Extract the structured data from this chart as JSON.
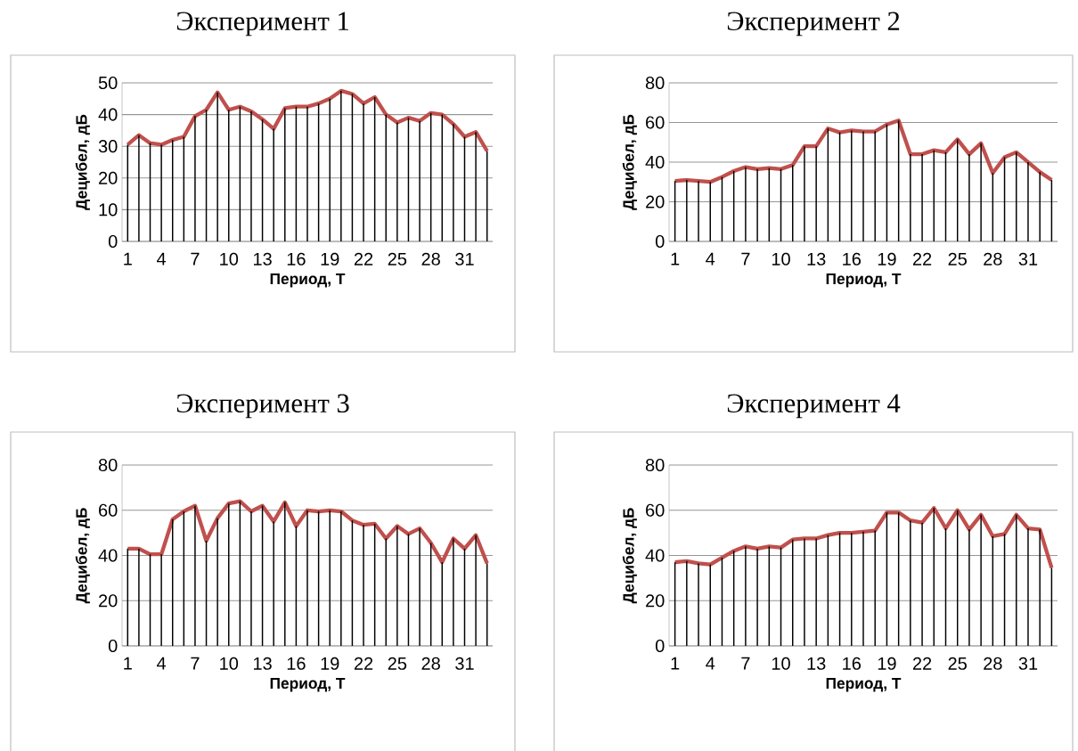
{
  "chart_data": [
    {
      "type": "line",
      "title": "Эксперимент 1",
      "xlabel": "Период, Т",
      "ylabel": "Децибел, дБ",
      "grid": "y",
      "ylim": [
        0,
        50
      ],
      "yticks": [
        0,
        10,
        20,
        30,
        40,
        50
      ],
      "categories": [
        "1",
        null,
        null,
        "4",
        null,
        null,
        "7",
        null,
        null,
        "10",
        null,
        null,
        "13",
        null,
        null,
        "16",
        null,
        null,
        "19",
        null,
        null,
        "22",
        null,
        null,
        "25",
        null,
        null,
        "28",
        null,
        null,
        "31",
        null,
        null
      ],
      "series": [
        {
          "type": "bar",
          "color": "#000000",
          "values": [
            30.5,
            33.5,
            31,
            30.5,
            32,
            33,
            39.5,
            41.5,
            47,
            41.5,
            42.5,
            41,
            38.5,
            35.5,
            42,
            42.5,
            42.5,
            43.5,
            45,
            47.5,
            46.5,
            43.5,
            45.5,
            40,
            37.5,
            39,
            38,
            40.5,
            40,
            37,
            33,
            34.5,
            28.5
          ]
        },
        {
          "color": "#c0504d",
          "values": [
            30.5,
            33.5,
            31,
            30.5,
            32,
            33,
            39.5,
            41.5,
            47,
            41.5,
            42.5,
            41,
            38.5,
            35.5,
            42,
            42.5,
            42.5,
            43.5,
            45,
            47.5,
            46.5,
            43.5,
            45.5,
            40,
            37.5,
            39,
            38,
            40.5,
            40,
            37,
            33,
            34.5,
            28.5
          ]
        }
      ]
    },
    {
      "type": "line",
      "title": "Эксперимент 2",
      "xlabel": "Период, Т",
      "ylabel": "Децибел, дБ",
      "grid": "y",
      "ylim": [
        0,
        80
      ],
      "yticks": [
        0,
        20,
        40,
        60,
        80
      ],
      "categories": [
        "1",
        null,
        null,
        "4",
        null,
        null,
        "7",
        null,
        null,
        "10",
        null,
        null,
        "13",
        null,
        null,
        "16",
        null,
        null,
        "19",
        null,
        null,
        "22",
        null,
        null,
        "25",
        null,
        null,
        "28",
        null,
        null,
        "31",
        null,
        null
      ],
      "series": [
        {
          "type": "bar",
          "color": "#000000",
          "values": [
            30.5,
            31,
            30.5,
            30,
            32.5,
            35.5,
            37.5,
            36.5,
            37,
            36.5,
            38.5,
            48,
            48,
            57,
            55,
            56,
            55.5,
            55.5,
            59,
            61,
            44,
            44,
            46,
            45,
            51.5,
            44,
            49.5,
            34.5,
            42.5,
            45,
            40,
            35,
            31
          ]
        },
        {
          "color": "#c0504d",
          "values": [
            30.5,
            31,
            30.5,
            30,
            32.5,
            35.5,
            37.5,
            36.5,
            37,
            36.5,
            38.5,
            48,
            48,
            57,
            55,
            56,
            55.5,
            55.5,
            59,
            61,
            44,
            44,
            46,
            45,
            51.5,
            44,
            49.5,
            34.5,
            42.5,
            45,
            40,
            35,
            31
          ]
        }
      ]
    },
    {
      "type": "line",
      "title": "Эксперимент 3",
      "xlabel": "Период, Т",
      "ylabel": "Децибел, дБ",
      "grid": "y",
      "ylim": [
        0,
        80
      ],
      "yticks": [
        0,
        20,
        40,
        60,
        80
      ],
      "categories": [
        "1",
        null,
        null,
        "4",
        null,
        null,
        "7",
        null,
        null,
        "10",
        null,
        null,
        "13",
        null,
        null,
        "16",
        null,
        null,
        "19",
        null,
        null,
        "22",
        null,
        null,
        "25",
        null,
        null,
        "28",
        null,
        null,
        "31",
        null,
        null
      ],
      "series": [
        {
          "type": "bar",
          "color": "#000000",
          "values": [
            43,
            43,
            40.5,
            40.5,
            56,
            59.5,
            62,
            46.5,
            56.5,
            63,
            64,
            59.5,
            62,
            55,
            63.5,
            53,
            60,
            59.5,
            60,
            59.5,
            55.5,
            53.5,
            54,
            47.5,
            53,
            49.5,
            52,
            45.5,
            37,
            47.5,
            43,
            49,
            36.5
          ]
        },
        {
          "color": "#c0504d",
          "values": [
            43,
            43,
            40.5,
            40.5,
            56,
            59.5,
            62,
            46.5,
            56.5,
            63,
            64,
            59.5,
            62,
            55,
            63.5,
            53,
            60,
            59.5,
            60,
            59.5,
            55.5,
            53.5,
            54,
            47.5,
            53,
            49.5,
            52,
            45.5,
            37,
            47.5,
            43,
            49,
            36.5
          ]
        }
      ]
    },
    {
      "type": "line",
      "title": "Эксперимент 4",
      "xlabel": "Период, Т",
      "ylabel": "Децибел, дБ",
      "grid": "y",
      "ylim": [
        0,
        80
      ],
      "yticks": [
        0,
        20,
        40,
        60,
        80
      ],
      "categories": [
        "1",
        null,
        null,
        "4",
        null,
        null,
        "7",
        null,
        null,
        "10",
        null,
        null,
        "13",
        null,
        null,
        "16",
        null,
        null,
        "19",
        null,
        null,
        "22",
        null,
        null,
        "25",
        null,
        null,
        "28",
        null,
        null,
        "31",
        null,
        null
      ],
      "series": [
        {
          "type": "bar",
          "color": "#000000",
          "values": [
            37,
            37.5,
            36.5,
            36,
            39,
            42,
            44,
            43,
            44,
            43.5,
            47,
            47.5,
            47.5,
            49,
            50,
            50,
            50.5,
            51,
            59,
            59,
            55.5,
            54.5,
            61,
            52,
            60,
            51.5,
            58,
            48.5,
            49.5,
            58,
            52,
            51.5,
            34.5
          ]
        },
        {
          "color": "#c0504d",
          "values": [
            37,
            37.5,
            36.5,
            36,
            39,
            42,
            44,
            43,
            44,
            43.5,
            47,
            47.5,
            47.5,
            49,
            50,
            50,
            50.5,
            51,
            59,
            59,
            55.5,
            54.5,
            61,
            52,
            60,
            51.5,
            58,
            48.5,
            49.5,
            58,
            52,
            51.5,
            34.5
          ]
        }
      ]
    }
  ]
}
